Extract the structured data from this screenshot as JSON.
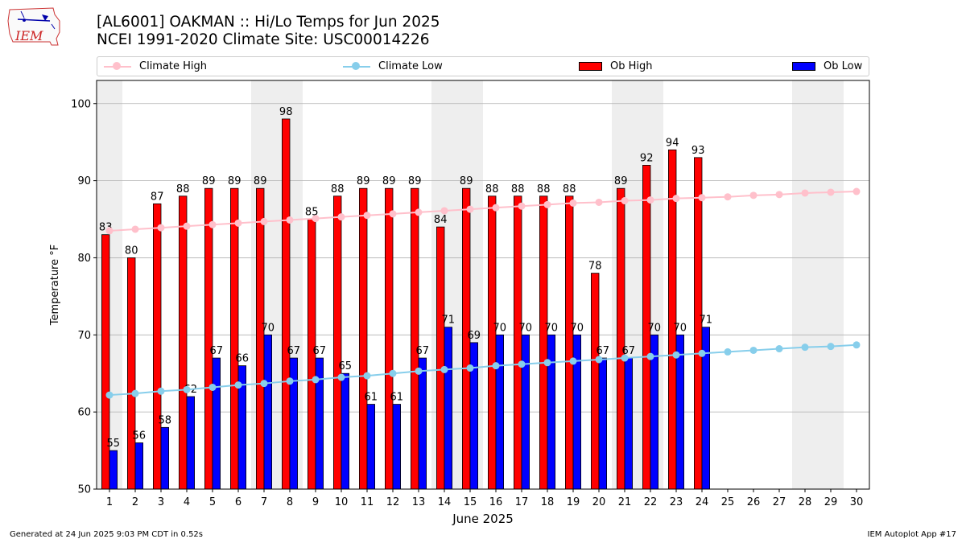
{
  "header": {
    "logo_text": "IEM",
    "title_line1": "[AL6001] OAKMAN :: Hi/Lo Temps for Jun 2025",
    "title_line2": "NCEI 1991-2020 Climate Site: USC00014226"
  },
  "footer": {
    "generated": "Generated at 24 Jun 2025 9:03 PM CDT in 0.52s",
    "app": "IEM Autoplot App #17"
  },
  "colors": {
    "ob_high": "#ff0000",
    "ob_low": "#0000ff",
    "climate_high": "#ffc0cb",
    "climate_low": "#87ceeb",
    "weekend_band": "#eeeeee",
    "grid": "#b0b0b0"
  },
  "chart_data": {
    "type": "bar",
    "xlabel": "June 2025",
    "ylabel": "Temperature °F",
    "ylim": [
      50,
      103
    ],
    "yticks": [
      50,
      60,
      70,
      80,
      90,
      100
    ],
    "grid": "horizontal",
    "legend_position": "top",
    "categories": [
      "1",
      "2",
      "3",
      "4",
      "5",
      "6",
      "7",
      "8",
      "9",
      "10",
      "11",
      "12",
      "13",
      "14",
      "15",
      "16",
      "17",
      "18",
      "19",
      "20",
      "21",
      "22",
      "23",
      "24",
      "25",
      "26",
      "27",
      "28",
      "29",
      "30"
    ],
    "weekend_days": [
      1,
      7,
      8,
      14,
      15,
      21,
      22,
      28,
      29
    ],
    "series": [
      {
        "name": "Climate High",
        "kind": "line",
        "color": "#ffc0cb",
        "values": [
          83.5,
          83.7,
          83.9,
          84.1,
          84.3,
          84.5,
          84.7,
          84.9,
          85.1,
          85.3,
          85.5,
          85.7,
          85.9,
          86.1,
          86.3,
          86.5,
          86.7,
          86.9,
          87.1,
          87.2,
          87.4,
          87.5,
          87.7,
          87.8,
          87.9,
          88.1,
          88.2,
          88.4,
          88.5,
          88.6
        ]
      },
      {
        "name": "Climate Low",
        "kind": "line",
        "color": "#87ceeb",
        "values": [
          62.2,
          62.4,
          62.7,
          62.9,
          63.2,
          63.5,
          63.7,
          64.0,
          64.2,
          64.5,
          64.7,
          65.0,
          65.3,
          65.5,
          65.7,
          66.0,
          66.2,
          66.4,
          66.6,
          66.8,
          67.0,
          67.2,
          67.4,
          67.6,
          67.8,
          68.0,
          68.2,
          68.4,
          68.5,
          68.7
        ]
      },
      {
        "name": "Ob High",
        "kind": "bar",
        "color": "#ff0000",
        "values": [
          83,
          80,
          87,
          88,
          89,
          89,
          89,
          98,
          85,
          88,
          89,
          89,
          89,
          84,
          89,
          88,
          88,
          88,
          88,
          78,
          89,
          92,
          94,
          93,
          null,
          null,
          null,
          null,
          null,
          null
        ]
      },
      {
        "name": "Ob Low",
        "kind": "bar",
        "color": "#0000ff",
        "values": [
          55,
          56,
          58,
          62,
          67,
          66,
          70,
          67,
          67,
          65,
          61,
          61,
          67,
          71,
          69,
          70,
          70,
          70,
          70,
          67,
          67,
          70,
          70,
          71,
          null,
          null,
          null,
          null,
          null,
          null
        ]
      }
    ]
  }
}
